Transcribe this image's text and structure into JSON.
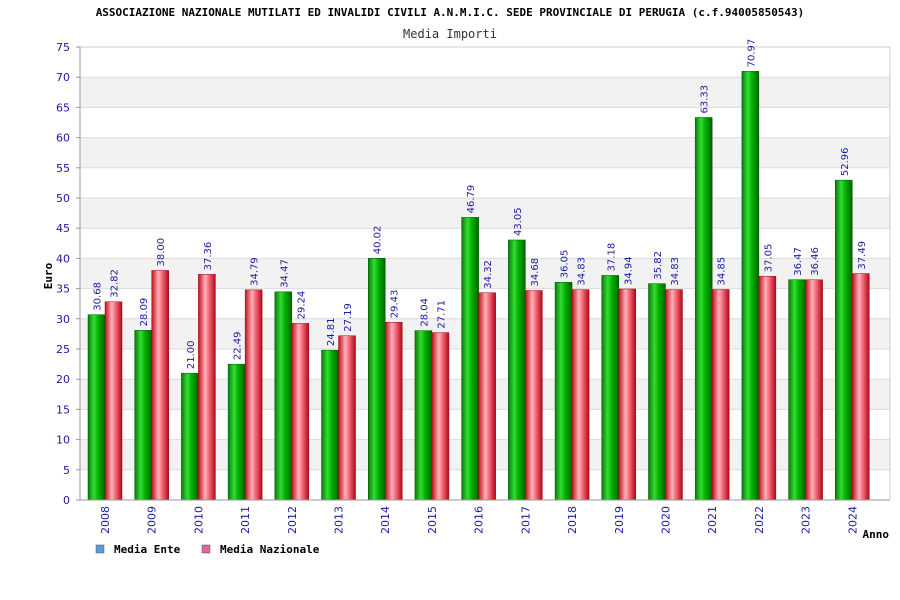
{
  "chart_data": {
    "type": "bar",
    "title": "ASSOCIAZIONE NAZIONALE MUTILATI ED INVALIDI CIVILI A.N.M.I.C. SEDE PROVINCIALE DI PERUGIA (c.f.94005850543)",
    "subtitle": "Media Importi",
    "xlabel": "Anno",
    "ylabel": "Euro",
    "ylim": [
      0,
      75
    ],
    "ytick_step": 5,
    "grid": true,
    "legend_position": "bottom-left",
    "categories": [
      "2008",
      "2009",
      "2010",
      "2011",
      "2012",
      "2013",
      "2014",
      "2015",
      "2016",
      "2017",
      "2018",
      "2019",
      "2020",
      "2021",
      "2022",
      "2023",
      "2024"
    ],
    "series": [
      {
        "name": "Media Ente",
        "color": "#00aa00",
        "legend_color": "#5b9bd5",
        "values": [
          30.68,
          28.09,
          21.0,
          22.49,
          34.47,
          24.81,
          40.02,
          28.04,
          46.79,
          43.05,
          36.05,
          37.18,
          35.82,
          63.33,
          70.97,
          36.47,
          52.96
        ],
        "labels": [
          "30.68",
          "28.09",
          "21.00",
          "22.49",
          "34.47",
          "24.81",
          "40.02",
          "28.04",
          "46.79",
          "43.05",
          "36.05",
          "37.18",
          "35.82",
          "63.33",
          "70.97",
          "36.47",
          "52.96"
        ]
      },
      {
        "name": "Media Nazionale",
        "color": "#e0303c",
        "legend_color": "#d86aa0",
        "values": [
          32.82,
          38.0,
          37.36,
          34.79,
          29.24,
          27.19,
          29.43,
          27.71,
          34.32,
          34.68,
          34.83,
          34.94,
          34.83,
          34.85,
          37.05,
          36.46,
          37.49
        ],
        "labels": [
          "32.82",
          "38.00",
          "37.36",
          "34.79",
          "29.24",
          "27.19",
          "29.43",
          "27.71",
          "34.32",
          "34.68",
          "34.83",
          "34.94",
          "34.83",
          "34.85",
          "37.05",
          "36.46",
          "37.49"
        ]
      }
    ]
  }
}
